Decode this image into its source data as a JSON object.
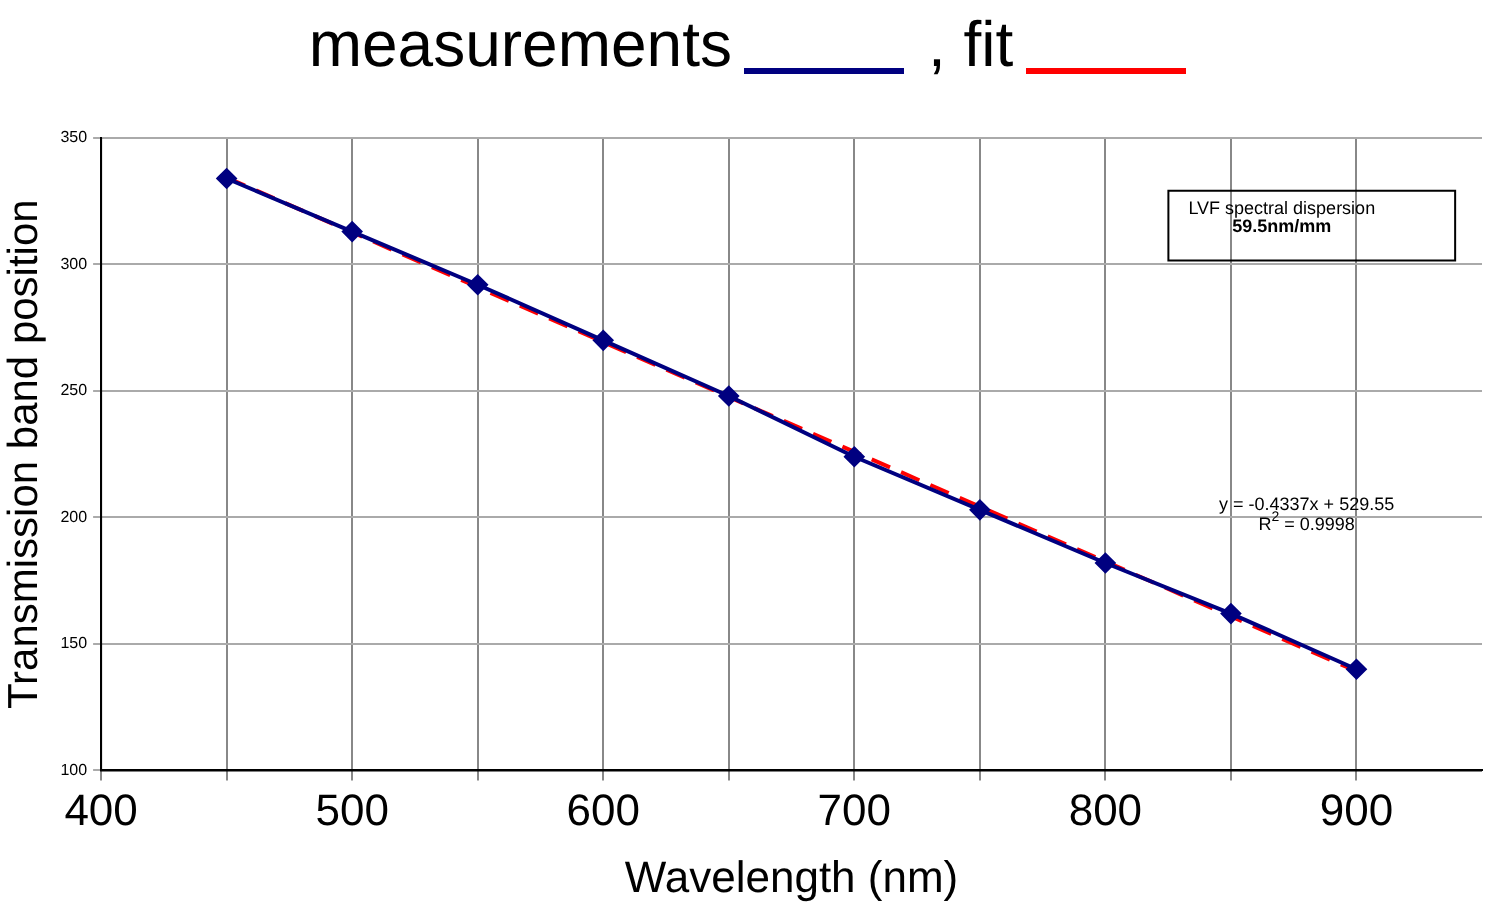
{
  "chart_data": {
    "type": "line",
    "xlabel": "Wavelength (nm)",
    "ylabel": "Transmission band position",
    "x": [
      450,
      500,
      550,
      600,
      650,
      700,
      750,
      800,
      850,
      900
    ],
    "series": [
      {
        "name": "measurements",
        "color": "#000080",
        "values": [
          334,
          313,
          292,
          270,
          248,
          224,
          203,
          182,
          162,
          140
        ],
        "marker": "diamond",
        "line_style": "solid"
      },
      {
        "name": ", fit",
        "type": "line",
        "color": "#ff0000",
        "x": [
          450,
          900
        ],
        "values": [
          334.4,
          139.2
        ],
        "marker": "none",
        "line_style": "dashed"
      }
    ],
    "xlim": [
      400,
      950
    ],
    "xticks": [
      400,
      {
        "value": 450,
        "label": null
      },
      500,
      {
        "value": 550,
        "label": null
      },
      600,
      {
        "value": 650,
        "label": null
      },
      700,
      {
        "value": 750,
        "label": null
      },
      800,
      {
        "value": 850,
        "label": null
      },
      900
    ],
    "ylim": [
      100,
      350
    ],
    "yticks": [
      100,
      150,
      200,
      250,
      300,
      350
    ],
    "grid": true,
    "legend": "top",
    "annotations": [
      "LVF spectral dispersion",
      "59.5nm/mm",
      "y = -0.4337x + 529.55",
      "R$^{2}$ = 0.9998"
    ]
  }
}
